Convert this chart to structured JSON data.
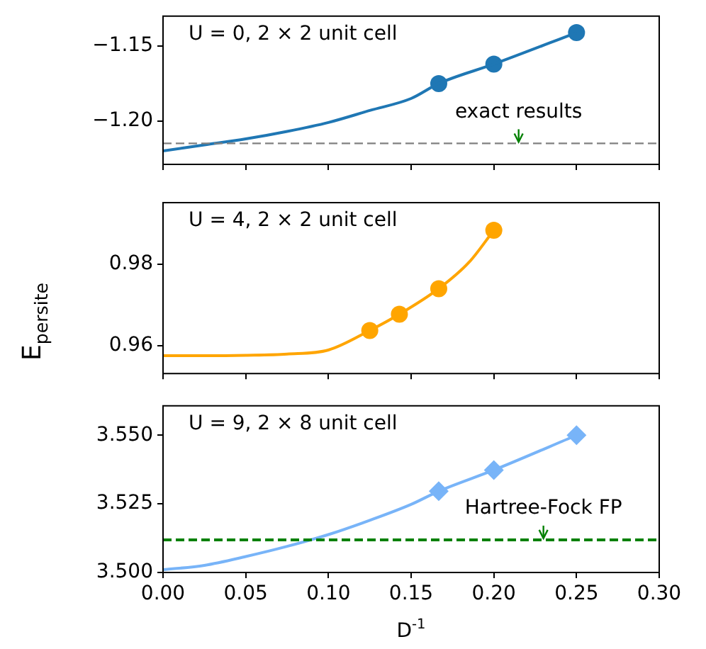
{
  "chart_data": [
    {
      "type": "line",
      "ylim": [
        -1.229,
        -1.13
      ],
      "yticks": [
        {
          "value": -1.15,
          "label": "−1.15"
        },
        {
          "value": -1.2,
          "label": "−1.20"
        }
      ],
      "xlim": [
        0,
        0.3
      ],
      "xticks": [
        0,
        0.05,
        0.1,
        0.15,
        0.2,
        0.25,
        0.3
      ],
      "tick_labels": "y",
      "grid": false,
      "legend": false,
      "series": [
        {
          "color": "#1f77b4",
          "marker": "none",
          "x": [
            0,
            0.025,
            0.05,
            0.075,
            0.1,
            0.125,
            0.15,
            0.1667,
            0.2,
            0.25
          ],
          "values": [
            -1.22,
            -1.216,
            -1.212,
            -1.207,
            -1.201,
            -1.193,
            -1.185,
            -1.175,
            -1.162,
            -1.141
          ]
        },
        {
          "type": "scatter",
          "color": "#1f77b4",
          "marker": "circle",
          "x": [
            0.1667,
            0.2,
            0.25
          ],
          "values": [
            -1.175,
            -1.162,
            -1.141
          ]
        }
      ],
      "ref_lines": [
        {
          "axis": "y",
          "value": -1.215,
          "color": "#808080",
          "line_style": "dashed"
        }
      ],
      "annotations": [
        "U = 0, 2 × 2 unit cell",
        {
          "text": "exact results",
          "x": 0.215,
          "y": -1.215
        }
      ]
    },
    {
      "type": "line",
      "ylim": [
        0.9531,
        0.9952
      ],
      "yticks": [
        0.96,
        0.98
      ],
      "xlim": [
        0,
        0.3
      ],
      "xticks": [
        0,
        0.05,
        0.1,
        0.15,
        0.2,
        0.25,
        0.3
      ],
      "tick_labels": "y",
      "grid": false,
      "legend": false,
      "ylabel": "E$_{persite}$",
      "series": [
        {
          "color": "#ffa500",
          "marker": "none",
          "x": [
            0,
            0.025,
            0.05,
            0.075,
            0.1,
            0.125,
            0.1429,
            0.1667,
            0.185,
            0.2
          ],
          "values": [
            0.9575,
            0.9575,
            0.9576,
            0.9579,
            0.9589,
            0.9637,
            0.9677,
            0.974,
            0.9805,
            0.9884
          ]
        },
        {
          "type": "scatter",
          "color": "#ffa500",
          "marker": "circle",
          "x": [
            0.125,
            0.1429,
            0.1667,
            0.2
          ],
          "values": [
            0.9637,
            0.9677,
            0.974,
            0.9884
          ]
        }
      ],
      "annotations": [
        "U = 4, 2 × 2 unit cell"
      ]
    },
    {
      "type": "line",
      "ylim": [
        3.5,
        3.5607
      ],
      "yticks": [
        {
          "value": 3.5,
          "label": "3.500"
        },
        3.525,
        {
          "value": 3.55,
          "label": "3.550"
        }
      ],
      "xlim": [
        0,
        0.3
      ],
      "xticks": [
        {
          "value": 0,
          "label": "0.00"
        },
        0.05,
        {
          "value": 0.1,
          "label": "0.10"
        },
        0.15,
        {
          "value": 0.2,
          "label": "0.20"
        },
        0.25,
        {
          "value": 0.3,
          "label": "0.30"
        }
      ],
      "grid": false,
      "legend": false,
      "xlabel": "D$^{-1}$",
      "series": [
        {
          "color": "#78b4f8",
          "marker": "none",
          "x": [
            0,
            0.025,
            0.05,
            0.075,
            0.1,
            0.125,
            0.15,
            0.1667,
            0.2,
            0.25
          ],
          "values": [
            3.501,
            3.5026,
            3.5058,
            3.5095,
            3.5138,
            3.519,
            3.5248,
            3.5296,
            3.5373,
            3.55
          ]
        },
        {
          "type": "scatter",
          "color": "#78b4f8",
          "marker": "diamond",
          "x": [
            0.1667,
            0.2,
            0.25
          ],
          "values": [
            3.5296,
            3.5373,
            3.55
          ]
        }
      ],
      "ref_lines": [
        {
          "axis": "y",
          "value": 3.5119,
          "color": "#008000",
          "line_style": "dashed"
        }
      ],
      "annotations": [
        "U = 9, 2 × 8 unit cell",
        {
          "text": "Hartree-Fock FP",
          "x": 0.23,
          "y": 3.5119
        }
      ]
    }
  ]
}
